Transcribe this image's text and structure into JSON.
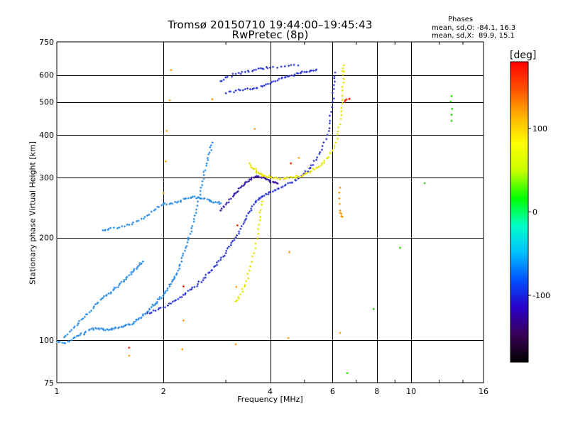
{
  "chart_data": {
    "type": "scatter",
    "title_line1": "Tromsø 20150710 19:44:00–19:45:43",
    "title_line2": "RwPretec (8p)",
    "stats": {
      "title": "Phases",
      "o_line": "mean, sd,O: -84.1, 16.3",
      "x_line": "mean, sd,X:  89.9, 15.1"
    },
    "xlabel": "Frequency [MHz]",
    "ylabel": "Stationary phase Virtual Height [km]",
    "x_scale": "log",
    "y_scale": "log",
    "xlim": [
      1,
      16
    ],
    "ylim": [
      75,
      750
    ],
    "x_ticks": [
      1,
      2,
      4,
      6,
      8,
      10,
      16
    ],
    "y_ticks": [
      75,
      100,
      200,
      300,
      400,
      500,
      600,
      750
    ],
    "grid": true,
    "colorbar": {
      "unit": "[deg]",
      "range": [
        -180,
        180
      ],
      "ticks": [
        100,
        0,
        -100
      ],
      "colormap": [
        "#000000",
        "#3a0057",
        "#2a00c8",
        "#0050ff",
        "#00c0ff",
        "#00ffc8",
        "#00ff00",
        "#c8ff00",
        "#ffff00",
        "#ffb400",
        "#ff5000",
        "#ff0000"
      ]
    },
    "colors": {
      "blue_trace": "#2f3ad8",
      "lightblue_trace": "#2e8fe8",
      "purple_trace": "#3f1ea8",
      "yellow_trace": "#e8e400",
      "orange_point": "#ff9a00",
      "red_point": "#ff2000",
      "green_point": "#20d000"
    },
    "series": [
      {
        "color": "lightblue_trace",
        "phase": -90,
        "points": [
          [
            1.0,
            99
          ],
          [
            1.05,
            98
          ],
          [
            1.1,
            100
          ],
          [
            1.15,
            103
          ],
          [
            1.2,
            105
          ],
          [
            1.25,
            108
          ],
          [
            1.3,
            108
          ],
          [
            1.35,
            108
          ],
          [
            1.4,
            107
          ],
          [
            1.45,
            108
          ],
          [
            1.5,
            109
          ],
          [
            1.55,
            110
          ],
          [
            1.6,
            111
          ],
          [
            1.65,
            113
          ],
          [
            1.7,
            115
          ],
          [
            1.75,
            118
          ],
          [
            1.8,
            121
          ],
          [
            1.85,
            125
          ],
          [
            1.9,
            128
          ],
          [
            1.95,
            132
          ],
          [
            2.0,
            135
          ],
          [
            2.05,
            140
          ],
          [
            2.1,
            146
          ],
          [
            2.15,
            152
          ],
          [
            2.2,
            160
          ],
          [
            2.25,
            170
          ],
          [
            2.3,
            183
          ],
          [
            2.35,
            197
          ],
          [
            2.4,
            213
          ],
          [
            2.45,
            232
          ],
          [
            2.5,
            255
          ],
          [
            2.55,
            280
          ],
          [
            2.6,
            305
          ],
          [
            2.65,
            330
          ],
          [
            2.7,
            355
          ],
          [
            2.75,
            380
          ]
        ]
      },
      {
        "color": "lightblue_trace",
        "phase": -90,
        "points": [
          [
            1.05,
            102
          ],
          [
            1.1,
            107
          ],
          [
            1.15,
            112
          ],
          [
            1.2,
            117
          ],
          [
            1.25,
            122
          ],
          [
            1.3,
            128
          ],
          [
            1.35,
            133
          ],
          [
            1.4,
            137
          ],
          [
            1.45,
            141
          ],
          [
            1.5,
            145
          ],
          [
            1.55,
            150
          ],
          [
            1.6,
            155
          ],
          [
            1.65,
            160
          ],
          [
            1.7,
            165
          ],
          [
            1.75,
            170
          ]
        ]
      },
      {
        "color": "blue_trace",
        "phase": -110,
        "points": [
          [
            1.8,
            120
          ],
          [
            1.9,
            122
          ],
          [
            2.0,
            125
          ],
          [
            2.1,
            128
          ],
          [
            2.2,
            132
          ],
          [
            2.3,
            136
          ],
          [
            2.4,
            141
          ],
          [
            2.5,
            146
          ],
          [
            2.6,
            152
          ],
          [
            2.7,
            158
          ],
          [
            2.8,
            165
          ],
          [
            2.9,
            172
          ],
          [
            3.0,
            180
          ],
          [
            3.1,
            190
          ],
          [
            3.2,
            200
          ],
          [
            3.3,
            212
          ],
          [
            3.4,
            225
          ],
          [
            3.5,
            238
          ],
          [
            3.6,
            250
          ],
          [
            3.7,
            258
          ],
          [
            3.8,
            264
          ],
          [
            3.9,
            268
          ],
          [
            4.0,
            272
          ],
          [
            4.2,
            278
          ],
          [
            4.4,
            284
          ],
          [
            4.6,
            290
          ],
          [
            4.8,
            298
          ],
          [
            5.0,
            308
          ],
          [
            5.2,
            320
          ],
          [
            5.4,
            338
          ],
          [
            5.6,
            362
          ],
          [
            5.8,
            400
          ],
          [
            5.9,
            440
          ],
          [
            6.0,
            500
          ],
          [
            6.05,
            560
          ],
          [
            6.1,
            610
          ]
        ]
      },
      {
        "color": "blue_trace",
        "phase": -110,
        "points": [
          [
            3.0,
            530
          ],
          [
            3.2,
            540
          ],
          [
            3.4,
            545
          ],
          [
            3.6,
            548
          ],
          [
            3.8,
            555
          ],
          [
            4.0,
            565
          ],
          [
            4.2,
            578
          ],
          [
            4.4,
            590
          ],
          [
            4.6,
            598
          ],
          [
            4.8,
            606
          ],
          [
            5.0,
            612
          ],
          [
            5.2,
            618
          ],
          [
            5.4,
            622
          ]
        ]
      },
      {
        "color": "blue_trace",
        "phase": -110,
        "points": [
          [
            2.9,
            575
          ],
          [
            3.0,
            590
          ],
          [
            3.2,
            604
          ],
          [
            3.4,
            612
          ],
          [
            3.6,
            620
          ],
          [
            3.8,
            626
          ],
          [
            4.0,
            630
          ],
          [
            4.4,
            636
          ],
          [
            4.8,
            640
          ]
        ]
      },
      {
        "color": "purple_trace",
        "phase": -140,
        "points": [
          [
            2.9,
            240
          ],
          [
            3.0,
            250
          ],
          [
            3.1,
            260
          ],
          [
            3.2,
            270
          ],
          [
            3.3,
            280
          ],
          [
            3.4,
            290
          ],
          [
            3.5,
            296
          ],
          [
            3.6,
            300
          ],
          [
            3.7,
            302
          ],
          [
            3.8,
            300
          ],
          [
            3.9,
            296
          ],
          [
            4.0,
            292
          ],
          [
            4.1,
            290
          ],
          [
            4.2,
            288
          ]
        ]
      },
      {
        "color": "yellow_trace",
        "phase": 100,
        "points": [
          [
            3.2,
            130
          ],
          [
            3.3,
            136
          ],
          [
            3.4,
            145
          ],
          [
            3.5,
            160
          ],
          [
            3.6,
            180
          ],
          [
            3.7,
            205
          ],
          [
            3.75,
            230
          ],
          [
            3.8,
            255
          ]
        ]
      },
      {
        "color": "yellow_trace",
        "phase": 100,
        "points": [
          [
            3.5,
            330
          ],
          [
            3.6,
            318
          ],
          [
            3.7,
            310
          ],
          [
            3.8,
            305
          ],
          [
            3.9,
            302
          ],
          [
            4.0,
            300
          ],
          [
            4.2,
            298
          ],
          [
            4.4,
            298
          ],
          [
            4.6,
            300
          ],
          [
            4.8,
            302
          ],
          [
            5.0,
            306
          ],
          [
            5.2,
            312
          ],
          [
            5.4,
            320
          ],
          [
            5.6,
            330
          ],
          [
            5.8,
            342
          ],
          [
            6.0,
            360
          ],
          [
            6.2,
            390
          ],
          [
            6.3,
            430
          ],
          [
            6.35,
            480
          ],
          [
            6.4,
            540
          ],
          [
            6.42,
            600
          ],
          [
            6.45,
            640
          ]
        ]
      },
      {
        "color": "lightblue_trace",
        "phase": -80,
        "points": [
          [
            2.0,
            250
          ],
          [
            2.1,
            252
          ],
          [
            2.2,
            255
          ],
          [
            2.3,
            260
          ],
          [
            2.4,
            262
          ],
          [
            2.5,
            262
          ],
          [
            2.6,
            260
          ],
          [
            2.7,
            256
          ],
          [
            2.8,
            254
          ],
          [
            2.9,
            252
          ]
        ]
      },
      {
        "color": "lightblue_trace",
        "phase": -80,
        "points": [
          [
            1.35,
            210
          ],
          [
            1.4,
            212
          ],
          [
            1.5,
            214
          ],
          [
            1.6,
            218
          ],
          [
            1.7,
            224
          ],
          [
            1.8,
            232
          ],
          [
            1.9,
            242
          ],
          [
            2.0,
            252
          ]
        ]
      },
      {
        "color": "orange_point",
        "phase": 150,
        "points": [
          [
            2.0,
            270
          ],
          [
            2.1,
            620
          ],
          [
            6.3,
            280
          ],
          [
            6.3,
            240
          ],
          [
            6.4,
            230
          ],
          [
            1.6,
            90
          ],
          [
            6.3,
            105
          ]
        ]
      },
      {
        "color": "red_point",
        "phase": 170,
        "points": [
          [
            1.6,
            95
          ],
          [
            6.5,
            500
          ],
          [
            6.7,
            510
          ]
        ]
      },
      {
        "color": "green_point",
        "phase": 0,
        "points": [
          [
            13.0,
            520
          ],
          [
            13.0,
            440
          ],
          [
            6.6,
            80
          ]
        ]
      }
    ]
  }
}
